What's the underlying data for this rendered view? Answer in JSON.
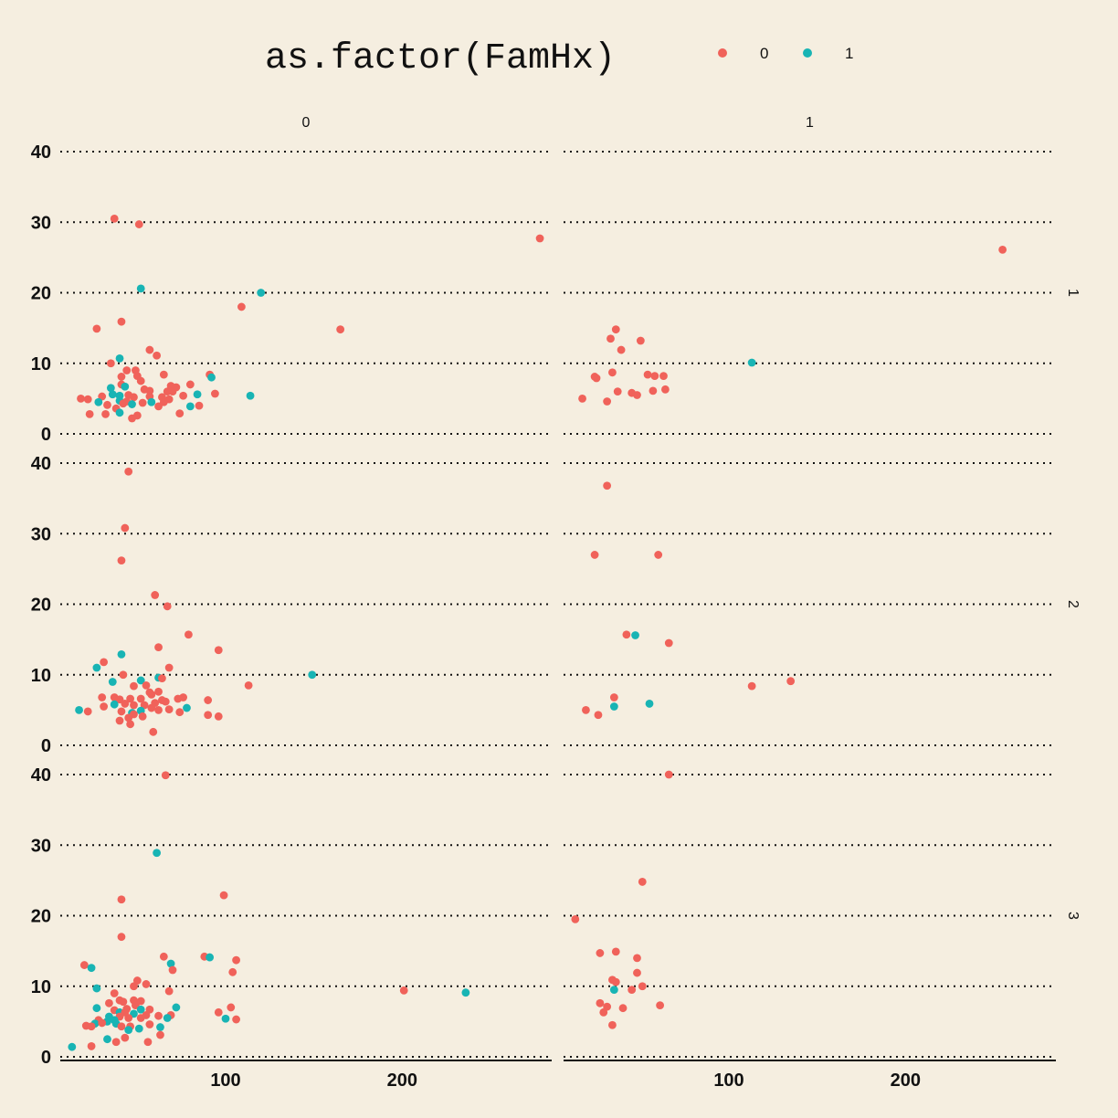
{
  "legend": {
    "title": "as.factor(FamHx)",
    "items": [
      {
        "label": "0",
        "color": "#f0625a"
      },
      {
        "label": "1",
        "color": "#18b4b4"
      }
    ]
  },
  "chart_data": {
    "type": "scatter",
    "facet_cols": [
      "0",
      "1"
    ],
    "facet_rows": [
      "1",
      "2",
      "3"
    ],
    "x_ticks": [
      "100",
      "200"
    ],
    "y_ticks": [
      "0",
      "10",
      "20",
      "30",
      "40"
    ],
    "xlim": [
      0,
      285
    ],
    "ylim": [
      0,
      40
    ],
    "grid": "horizontal dotted",
    "legend_position": "top",
    "series_colors": {
      "0": "#f0625a",
      "1": "#18b4b4"
    },
    "panels": [
      {
        "col": "0",
        "row": "1",
        "points": [
          [
            37,
            30.5,
            0
          ],
          [
            51,
            29.7,
            0
          ],
          [
            278,
            27.7,
            0
          ],
          [
            52,
            20.6,
            1
          ],
          [
            120,
            20,
            1
          ],
          [
            109,
            18,
            0
          ],
          [
            165,
            14.8,
            0
          ],
          [
            27,
            14.9,
            0
          ],
          [
            41,
            15.9,
            0
          ],
          [
            57,
            11.9,
            0
          ],
          [
            61,
            11.1,
            0
          ],
          [
            40,
            10.7,
            1
          ],
          [
            35,
            10,
            0
          ],
          [
            44,
            9,
            0
          ],
          [
            49,
            9,
            0
          ],
          [
            65,
            8.4,
            0
          ],
          [
            41,
            8.1,
            0
          ],
          [
            50,
            8.2,
            0
          ],
          [
            91,
            8.4,
            0
          ],
          [
            92,
            8,
            1
          ],
          [
            52,
            7.5,
            0
          ],
          [
            41,
            7,
            0
          ],
          [
            35,
            6.5,
            1
          ],
          [
            43,
            6.7,
            1
          ],
          [
            54,
            6.3,
            0
          ],
          [
            57,
            6.1,
            0
          ],
          [
            69,
            6.8,
            0
          ],
          [
            72,
            6.6,
            0
          ],
          [
            80,
            7,
            0
          ],
          [
            67,
            6,
            0
          ],
          [
            70,
            6,
            0
          ],
          [
            84,
            5.6,
            1
          ],
          [
            94,
            5.7,
            0
          ],
          [
            114,
            5.4,
            1
          ],
          [
            76,
            5.4,
            0
          ],
          [
            64,
            5.2,
            0
          ],
          [
            36,
            5.6,
            1
          ],
          [
            40,
            5.4,
            1
          ],
          [
            45,
            5.5,
            0
          ],
          [
            48,
            5.2,
            0
          ],
          [
            57,
            5.3,
            0
          ],
          [
            18,
            5,
            0
          ],
          [
            22,
            4.9,
            0
          ],
          [
            30,
            5.3,
            0
          ],
          [
            40,
            4.7,
            1
          ],
          [
            44,
            4.6,
            0
          ],
          [
            53,
            4.4,
            0
          ],
          [
            58,
            4.5,
            1
          ],
          [
            65,
            4.5,
            0
          ],
          [
            68,
            4.9,
            0
          ],
          [
            28,
            4.5,
            1
          ],
          [
            33,
            4.1,
            0
          ],
          [
            42,
            4.3,
            0
          ],
          [
            47,
            4.2,
            1
          ],
          [
            62,
            3.9,
            0
          ],
          [
            80,
            3.9,
            1
          ],
          [
            85,
            4,
            0
          ],
          [
            38,
            3.6,
            0
          ],
          [
            40,
            3,
            1
          ],
          [
            23,
            2.8,
            0
          ],
          [
            32,
            2.8,
            0
          ],
          [
            47,
            2.2,
            0
          ],
          [
            50,
            2.6,
            0
          ],
          [
            74,
            2.9,
            0
          ]
        ]
      },
      {
        "col": "1",
        "row": "1",
        "points": [
          [
            255,
            26.1,
            0
          ],
          [
            113,
            10.1,
            1
          ],
          [
            36,
            14.8,
            0
          ],
          [
            33,
            13.5,
            0
          ],
          [
            50,
            13.2,
            0
          ],
          [
            39,
            11.9,
            0
          ],
          [
            34,
            8.7,
            0
          ],
          [
            24,
            8.1,
            0
          ],
          [
            25,
            7.9,
            0
          ],
          [
            54,
            8.4,
            0
          ],
          [
            58,
            8.2,
            0
          ],
          [
            63,
            8.2,
            0
          ],
          [
            37,
            6,
            0
          ],
          [
            45,
            5.8,
            0
          ],
          [
            48,
            5.5,
            0
          ],
          [
            57,
            6.1,
            0
          ],
          [
            64,
            6.3,
            0
          ],
          [
            17,
            5,
            0
          ],
          [
            31,
            4.6,
            0
          ]
        ]
      },
      {
        "col": "0",
        "row": "2",
        "points": [
          [
            45,
            38.8,
            0
          ],
          [
            43,
            30.8,
            0
          ],
          [
            41,
            26.2,
            0
          ],
          [
            60,
            21.3,
            0
          ],
          [
            67,
            19.7,
            0
          ],
          [
            79,
            15.7,
            0
          ],
          [
            96,
            13.5,
            0
          ],
          [
            62,
            13.9,
            0
          ],
          [
            41,
            12.9,
            1
          ],
          [
            31,
            11.8,
            0
          ],
          [
            27,
            11,
            1
          ],
          [
            68,
            11,
            0
          ],
          [
            42,
            10,
            0
          ],
          [
            62,
            9.6,
            1
          ],
          [
            64,
            9.5,
            0
          ],
          [
            36,
            9,
            1
          ],
          [
            52,
            9.2,
            1
          ],
          [
            48,
            8.4,
            0
          ],
          [
            55,
            8.5,
            0
          ],
          [
            113,
            8.5,
            0
          ],
          [
            149,
            10,
            1
          ],
          [
            57,
            7.5,
            0
          ],
          [
            62,
            7.6,
            0
          ],
          [
            73,
            6.6,
            0
          ],
          [
            76,
            6.8,
            0
          ],
          [
            90,
            6.4,
            0
          ],
          [
            30,
            6.8,
            0
          ],
          [
            37,
            6.8,
            0
          ],
          [
            40,
            6.5,
            0
          ],
          [
            46,
            6.6,
            0
          ],
          [
            52,
            6.6,
            0
          ],
          [
            58,
            7.2,
            0
          ],
          [
            64,
            6.4,
            0
          ],
          [
            31,
            5.5,
            0
          ],
          [
            37,
            5.8,
            1
          ],
          [
            43,
            5.9,
            0
          ],
          [
            48,
            5.7,
            0
          ],
          [
            54,
            5.7,
            0
          ],
          [
            60,
            6,
            0
          ],
          [
            66,
            6.2,
            0
          ],
          [
            17,
            5,
            1
          ],
          [
            22,
            4.8,
            0
          ],
          [
            41,
            4.8,
            0
          ],
          [
            47,
            4.6,
            1
          ],
          [
            52,
            4.9,
            1
          ],
          [
            58,
            5.3,
            0
          ],
          [
            62,
            5,
            0
          ],
          [
            68,
            5.1,
            0
          ],
          [
            78,
            5.3,
            1
          ],
          [
            74,
            4.7,
            0
          ],
          [
            90,
            4.3,
            0
          ],
          [
            96,
            4.1,
            0
          ],
          [
            40,
            3.5,
            0
          ],
          [
            45,
            3.9,
            0
          ],
          [
            48,
            4.4,
            0
          ],
          [
            53,
            4.1,
            0
          ],
          [
            46,
            3,
            0
          ],
          [
            59,
            1.9,
            0
          ]
        ]
      },
      {
        "col": "1",
        "row": "2",
        "points": [
          [
            31,
            36.8,
            0
          ],
          [
            24,
            27,
            0
          ],
          [
            60,
            27,
            0
          ],
          [
            42,
            15.7,
            0
          ],
          [
            47,
            15.6,
            1
          ],
          [
            66,
            14.5,
            0
          ],
          [
            113,
            8.4,
            0
          ],
          [
            135,
            9.1,
            0
          ],
          [
            35,
            6.8,
            0
          ],
          [
            35,
            5.5,
            1
          ],
          [
            55,
            5.9,
            1
          ],
          [
            19,
            5,
            0
          ],
          [
            26,
            4.3,
            0
          ]
        ]
      },
      {
        "col": "0",
        "row": "3",
        "points": [
          [
            66,
            39.9,
            0
          ],
          [
            61,
            28.9,
            1
          ],
          [
            99,
            22.9,
            0
          ],
          [
            41,
            22.3,
            0
          ],
          [
            41,
            17,
            0
          ],
          [
            88,
            14.2,
            0
          ],
          [
            91,
            14.1,
            1
          ],
          [
            65,
            14.2,
            0
          ],
          [
            106,
            13.7,
            0
          ],
          [
            20,
            13,
            0
          ],
          [
            24,
            12.6,
            1
          ],
          [
            69,
            13.2,
            1
          ],
          [
            104,
            12,
            0
          ],
          [
            70,
            12.3,
            0
          ],
          [
            27,
            9.7,
            1
          ],
          [
            50,
            10.8,
            0
          ],
          [
            48,
            10,
            0
          ],
          [
            55,
            10.3,
            0
          ],
          [
            68,
            9.3,
            0
          ],
          [
            201,
            9.4,
            0
          ],
          [
            236,
            9.1,
            1
          ],
          [
            37,
            9,
            0
          ],
          [
            40,
            8,
            0
          ],
          [
            42,
            7.8,
            0
          ],
          [
            48,
            8,
            0
          ],
          [
            52,
            7.9,
            0
          ],
          [
            34,
            7.6,
            0
          ],
          [
            49,
            7.3,
            0
          ],
          [
            72,
            7,
            1
          ],
          [
            103,
            7,
            0
          ],
          [
            27,
            6.9,
            1
          ],
          [
            37,
            6.6,
            0
          ],
          [
            44,
            6.8,
            0
          ],
          [
            52,
            6.7,
            1
          ],
          [
            57,
            6.7,
            0
          ],
          [
            96,
            6.3,
            0
          ],
          [
            40,
            6.3,
            1
          ],
          [
            43,
            6.3,
            0
          ],
          [
            48,
            6.1,
            1
          ],
          [
            55,
            5.9,
            0
          ],
          [
            62,
            5.8,
            0
          ],
          [
            69,
            5.9,
            0
          ],
          [
            34,
            5.7,
            1
          ],
          [
            40,
            5.7,
            0
          ],
          [
            45,
            5.5,
            0
          ],
          [
            52,
            5.5,
            0
          ],
          [
            67,
            5.5,
            1
          ],
          [
            100,
            5.4,
            1
          ],
          [
            106,
            5.3,
            0
          ],
          [
            28,
            5.2,
            0
          ],
          [
            33,
            5,
            1
          ],
          [
            37,
            5.2,
            1
          ],
          [
            26,
            4.7,
            1
          ],
          [
            30,
            4.8,
            0
          ],
          [
            38,
            4.7,
            1
          ],
          [
            46,
            4.3,
            0
          ],
          [
            57,
            4.6,
            0
          ],
          [
            21,
            4.4,
            0
          ],
          [
            24,
            4.3,
            0
          ],
          [
            63,
            4.2,
            1
          ],
          [
            41,
            4.3,
            0
          ],
          [
            45,
            3.8,
            1
          ],
          [
            51,
            4,
            1
          ],
          [
            63,
            3.1,
            0
          ],
          [
            33,
            2.5,
            1
          ],
          [
            38,
            2.1,
            0
          ],
          [
            43,
            2.7,
            0
          ],
          [
            56,
            2.1,
            0
          ],
          [
            24,
            1.5,
            0
          ],
          [
            13,
            1.4,
            1
          ]
        ]
      },
      {
        "col": "1",
        "row": "3",
        "points": [
          [
            66,
            40,
            0
          ],
          [
            51,
            24.8,
            0
          ],
          [
            13,
            19.5,
            0
          ],
          [
            27,
            14.7,
            0
          ],
          [
            36,
            14.9,
            0
          ],
          [
            48,
            14,
            0
          ],
          [
            48,
            11.9,
            0
          ],
          [
            34,
            10.9,
            0
          ],
          [
            36,
            10.6,
            0
          ],
          [
            51,
            10,
            0
          ],
          [
            45,
            9.5,
            0
          ],
          [
            35,
            9.5,
            1
          ],
          [
            27,
            7.6,
            0
          ],
          [
            31,
            7.1,
            0
          ],
          [
            40,
            6.9,
            0
          ],
          [
            61,
            7.3,
            0
          ],
          [
            29,
            6.3,
            0
          ],
          [
            34,
            4.5,
            0
          ]
        ]
      }
    ]
  }
}
